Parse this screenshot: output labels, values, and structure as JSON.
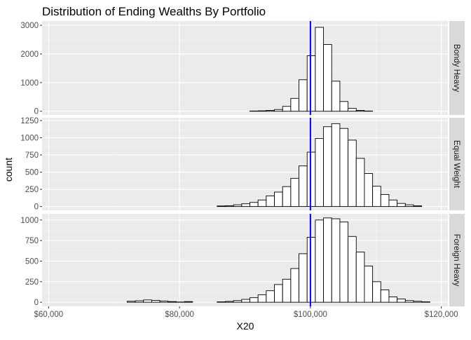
{
  "chart_data": {
    "type": "histogram",
    "title": "Distribution of Ending Wealths By Portfolio",
    "xlabel": "X20",
    "ylabel": "count",
    "x_range": [
      59000,
      121000
    ],
    "x_ticks": [
      60000,
      80000,
      100000,
      120000
    ],
    "x_tick_labels": [
      "$60,000",
      "$80,000",
      "$100,000",
      "$120,000"
    ],
    "bin_start": 59500,
    "bin_width": 1250,
    "reference_line": {
      "x": 100000,
      "color": "#0000ff"
    },
    "panel_bg": "#ebebeb",
    "grid": true,
    "facets": [
      {
        "label": "Bondy Heavy",
        "ylim": [
          -130,
          3150
        ],
        "y_ticks": [
          0,
          1000,
          2000,
          3000
        ],
        "values": [
          0,
          0,
          0,
          0,
          0,
          0,
          0,
          0,
          0,
          0,
          0,
          0,
          0,
          0,
          0,
          0,
          0,
          0,
          0,
          0,
          0,
          0,
          0,
          0,
          0,
          8,
          15,
          30,
          60,
          170,
          450,
          1100,
          1940,
          2930,
          2330,
          1050,
          340,
          100,
          30,
          8,
          0,
          0,
          0,
          0,
          0,
          0,
          0,
          0,
          0,
          0
        ]
      },
      {
        "label": "Equal Weight",
        "ylim": [
          -55,
          1290
        ],
        "y_ticks": [
          0,
          250,
          500,
          750,
          1000,
          1250
        ],
        "values": [
          0,
          0,
          0,
          0,
          0,
          0,
          0,
          0,
          0,
          0,
          0,
          0,
          0,
          0,
          0,
          0,
          0,
          0,
          0,
          0,
          0,
          8,
          12,
          25,
          40,
          60,
          95,
          155,
          210,
          290,
          410,
          590,
          790,
          990,
          1160,
          1205,
          1135,
          965,
          700,
          480,
          295,
          175,
          95,
          45,
          25,
          10,
          0,
          0,
          0,
          0
        ]
      },
      {
        "label": "Foreign Heavy",
        "ylim": [
          -50,
          1075
        ],
        "y_ticks": [
          0,
          250,
          500,
          750,
          1000
        ],
        "values": [
          0,
          0,
          0,
          0,
          0,
          0,
          0,
          0,
          0,
          0,
          12,
          18,
          28,
          22,
          15,
          8,
          3,
          8,
          0,
          0,
          0,
          5,
          10,
          20,
          35,
          55,
          90,
          140,
          215,
          280,
          410,
          590,
          790,
          1000,
          1025,
          1015,
          975,
          800,
          610,
          440,
          250,
          150,
          65,
          40,
          20,
          12,
          5,
          0,
          0,
          0
        ]
      }
    ]
  }
}
